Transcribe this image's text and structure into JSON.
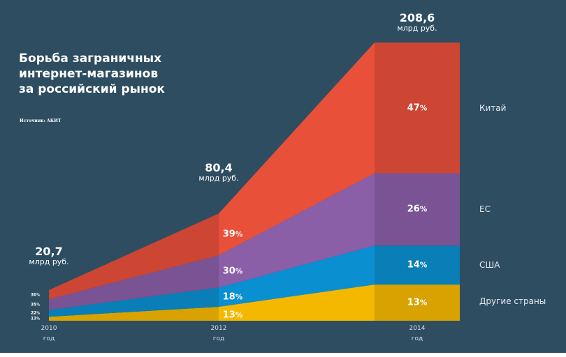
{
  "title_lines": [
    "Борьба заграничных",
    "интернет-магазинов",
    "за российский рынок"
  ],
  "source": "Источник: АКИТ",
  "chart_data": {
    "type": "area",
    "title": "Борьба заграничных интернет-магазинов за российский рынок",
    "x": [
      "2010",
      "2012",
      "2014"
    ],
    "x_sublabel": "год",
    "totals": [
      20.7,
      80.4,
      208.6
    ],
    "totals_labels": [
      "20,7",
      "80,4",
      "208,6"
    ],
    "unit": "млрд руб.",
    "stacked_percent_of_total": true,
    "series": [
      {
        "name": "Другие страны",
        "color": "#f5b800",
        "values_pct": [
          13,
          13,
          13
        ]
      },
      {
        "name": "США",
        "color": "#0a8fd0",
        "values_pct": [
          22,
          18,
          14
        ]
      },
      {
        "name": "ЕС",
        "color": "#8b5ea8",
        "values_pct": [
          35,
          30,
          26
        ]
      },
      {
        "name": "Китай",
        "color": "#e8503a",
        "values_pct": [
          30,
          39,
          47
        ]
      }
    ],
    "legend_placement": "right"
  }
}
